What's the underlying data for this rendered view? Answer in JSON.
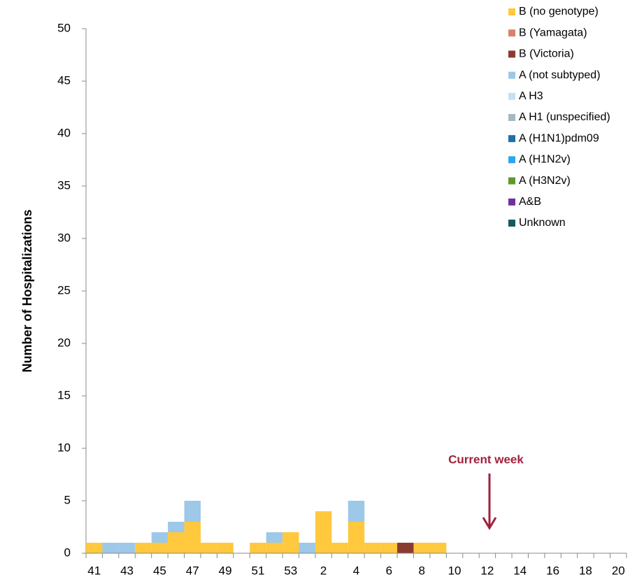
{
  "chart_data": {
    "type": "stacked-bar",
    "y_label": "Number of Hospitalizations",
    "annotation": "Current week",
    "categories": [
      "41",
      null,
      "43",
      null,
      "45",
      null,
      "47",
      null,
      "49",
      null,
      "51",
      null,
      "53",
      null,
      "2",
      null,
      "4",
      null,
      "6",
      null,
      "8",
      null,
      "10",
      null,
      "12",
      null,
      "14",
      null,
      "16",
      null,
      "18",
      null,
      "20"
    ],
    "ylim": [
      0,
      50
    ],
    "yticks": [
      0,
      5,
      10,
      15,
      20,
      25,
      30,
      35,
      40,
      45,
      50
    ],
    "series": [
      {
        "name": "B (no genotype)",
        "color": "#FFC83D",
        "values": [
          1,
          0,
          0,
          1,
          1,
          2,
          3,
          1,
          1,
          0,
          1,
          1,
          2,
          0,
          4,
          1,
          3,
          1,
          1,
          0,
          1,
          1,
          0,
          0,
          0,
          0,
          0,
          0,
          0,
          0,
          0,
          0,
          0
        ]
      },
      {
        "name": "B (Yamagata)",
        "color": "#D9826B",
        "values": [
          0,
          0,
          0,
          0,
          0,
          0,
          0,
          0,
          0,
          0,
          0,
          0,
          0,
          0,
          0,
          0,
          0,
          0,
          0,
          0,
          0,
          0,
          0,
          0,
          0,
          0,
          0,
          0,
          0,
          0,
          0,
          0,
          0
        ]
      },
      {
        "name": "B (Victoria)",
        "color": "#8B3A2F",
        "values": [
          0,
          0,
          0,
          0,
          0,
          0,
          0,
          0,
          0,
          0,
          0,
          0,
          0,
          0,
          0,
          0,
          0,
          0,
          0,
          1,
          0,
          0,
          0,
          0,
          0,
          0,
          0,
          0,
          0,
          0,
          0,
          0,
          0
        ]
      },
      {
        "name": "A (not subtyped)",
        "color": "#9DC8E8",
        "values": [
          0,
          1,
          1,
          0,
          1,
          1,
          2,
          0,
          0,
          0,
          0,
          1,
          0,
          1,
          0,
          0,
          2,
          0,
          0,
          0,
          0,
          0,
          0,
          0,
          0,
          0,
          0,
          0,
          0,
          0,
          0,
          0,
          0
        ]
      },
      {
        "name": "A H3",
        "color": "#C5E0F0",
        "values": [
          0,
          0,
          0,
          0,
          0,
          0,
          0,
          0,
          0,
          0,
          0,
          0,
          0,
          0,
          0,
          0,
          0,
          0,
          0,
          0,
          0,
          0,
          0,
          0,
          0,
          0,
          0,
          0,
          0,
          0,
          0,
          0,
          0
        ]
      },
      {
        "name": "A H1 (unspecified)",
        "color": "#A6B8C2",
        "values": [
          0,
          0,
          0,
          0,
          0,
          0,
          0,
          0,
          0,
          0,
          0,
          0,
          0,
          0,
          0,
          0,
          0,
          0,
          0,
          0,
          0,
          0,
          0,
          0,
          0,
          0,
          0,
          0,
          0,
          0,
          0,
          0,
          0
        ]
      },
      {
        "name": "A (H1N1)pdm09",
        "color": "#1F6FA8",
        "values": [
          0,
          0,
          0,
          0,
          0,
          0,
          0,
          0,
          0,
          0,
          0,
          0,
          0,
          0,
          0,
          0,
          0,
          0,
          0,
          0,
          0,
          0,
          0,
          0,
          0,
          0,
          0,
          0,
          0,
          0,
          0,
          0,
          0
        ]
      },
      {
        "name": "A (H1N2v)",
        "color": "#2EA6F0",
        "values": [
          0,
          0,
          0,
          0,
          0,
          0,
          0,
          0,
          0,
          0,
          0,
          0,
          0,
          0,
          0,
          0,
          0,
          0,
          0,
          0,
          0,
          0,
          0,
          0,
          0,
          0,
          0,
          0,
          0,
          0,
          0,
          0,
          0
        ]
      },
      {
        "name": "A (H3N2v)",
        "color": "#5E9A2A",
        "values": [
          0,
          0,
          0,
          0,
          0,
          0,
          0,
          0,
          0,
          0,
          0,
          0,
          0,
          0,
          0,
          0,
          0,
          0,
          0,
          0,
          0,
          0,
          0,
          0,
          0,
          0,
          0,
          0,
          0,
          0,
          0,
          0,
          0
        ]
      },
      {
        "name": "A&B",
        "color": "#7030A0",
        "values": [
          0,
          0,
          0,
          0,
          0,
          0,
          0,
          0,
          0,
          0,
          0,
          0,
          0,
          0,
          0,
          0,
          0,
          0,
          0,
          0,
          0,
          0,
          0,
          0,
          0,
          0,
          0,
          0,
          0,
          0,
          0,
          0,
          0
        ]
      },
      {
        "name": "Unknown",
        "color": "#145A5A",
        "values": [
          0,
          0,
          0,
          0,
          0,
          0,
          0,
          0,
          0,
          0,
          0,
          0,
          0,
          0,
          0,
          0,
          0,
          0,
          0,
          0,
          0,
          0,
          0,
          0,
          0,
          0,
          0,
          0,
          0,
          0,
          0,
          0,
          0
        ]
      }
    ]
  }
}
